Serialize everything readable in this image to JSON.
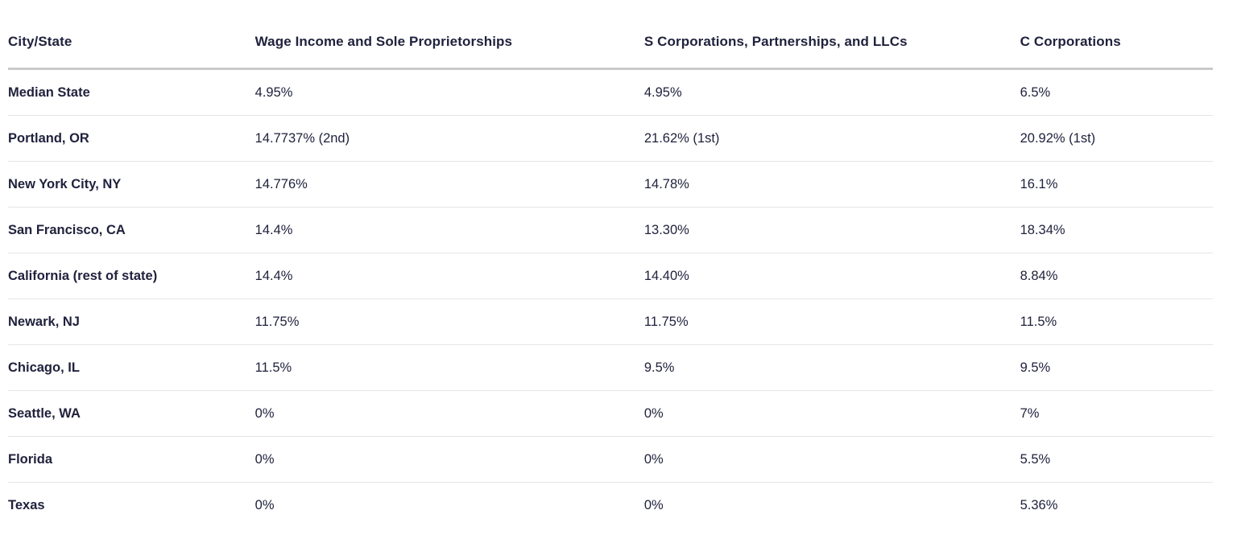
{
  "colors": {
    "background": "#ffffff",
    "text": "#20223d",
    "header_rule": "#c9cacc",
    "row_rule": "#e5e5e7"
  },
  "table": {
    "columns": [
      {
        "label": "City/State"
      },
      {
        "label": "Wage Income and Sole Proprietorships"
      },
      {
        "label": "S Corporations, Partnerships, and LLCs"
      },
      {
        "label": "C Corporations"
      }
    ],
    "rows": [
      {
        "city": "Median State",
        "wage": "4.95%",
        "s_corp": "4.95%",
        "c_corp": "6.5%"
      },
      {
        "city": "Portland, OR",
        "wage": "14.7737% (2nd)",
        "s_corp": "21.62% (1st)",
        "c_corp": "20.92% (1st)"
      },
      {
        "city": "New York City, NY",
        "wage": "14.776%",
        "s_corp": "14.78%",
        "c_corp": "16.1%"
      },
      {
        "city": "San Francisco, CA",
        "wage": "14.4%",
        "s_corp": "13.30%",
        "c_corp": "18.34%"
      },
      {
        "city": "California (rest of state)",
        "wage": "14.4%",
        "s_corp": "14.40%",
        "c_corp": "8.84%"
      },
      {
        "city": "Newark, NJ",
        "wage": "11.75%",
        "s_corp": "11.75%",
        "c_corp": "11.5%"
      },
      {
        "city": "Chicago, IL",
        "wage": "11.5%",
        "s_corp": "9.5%",
        "c_corp": "9.5%"
      },
      {
        "city": "Seattle, WA",
        "wage": "0%",
        "s_corp": "0%",
        "c_corp": "7%"
      },
      {
        "city": "Florida",
        "wage": "0%",
        "s_corp": "0%",
        "c_corp": "5.5%"
      },
      {
        "city": "Texas",
        "wage": "0%",
        "s_corp": "0%",
        "c_corp": "5.36%"
      }
    ]
  },
  "chart_data": {
    "type": "table",
    "title": "",
    "columns": [
      "City/State",
      "Wage Income and Sole Proprietorships",
      "S Corporations, Partnerships, and LLCs",
      "C Corporations"
    ],
    "rows": [
      [
        "Median State",
        "4.95%",
        "4.95%",
        "6.5%"
      ],
      [
        "Portland, OR",
        "14.7737% (2nd)",
        "21.62% (1st)",
        "20.92% (1st)"
      ],
      [
        "New York City, NY",
        "14.776%",
        "14.78%",
        "16.1%"
      ],
      [
        "San Francisco, CA",
        "14.4%",
        "13.30%",
        "18.34%"
      ],
      [
        "California (rest of state)",
        "14.4%",
        "14.40%",
        "8.84%"
      ],
      [
        "Newark, NJ",
        "11.75%",
        "11.75%",
        "11.5%"
      ],
      [
        "Chicago, IL",
        "11.5%",
        "9.5%",
        "9.5%"
      ],
      [
        "Seattle, WA",
        "0%",
        "0%",
        "7%"
      ],
      [
        "Florida",
        "0%",
        "0%",
        "5.5%"
      ],
      [
        "Texas",
        "0%",
        "0%",
        "5.36%"
      ]
    ]
  }
}
